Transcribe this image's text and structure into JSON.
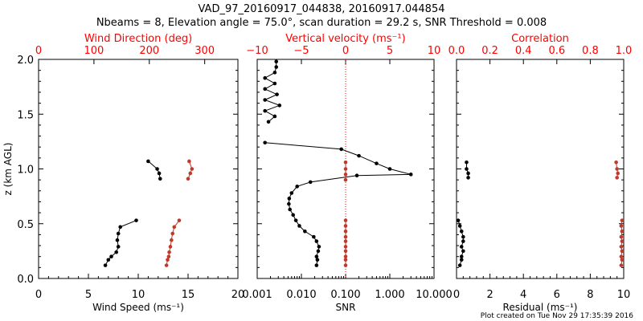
{
  "title_line1": "VAD_97_20160917_044838, 20160917.044854",
  "title_line2": "Nbeams = 8, Elevation angle = 75.0°, scan duration = 29.2 s, SNR Threshold = 0.008",
  "footer": "Plot created on Tue Nov 29 17:35:39 2016",
  "colors": {
    "primary": "#000000",
    "secondary": "#c0392b",
    "axis_red": "#ff0000"
  },
  "chart_data": [
    {
      "type": "line",
      "xlabel": "Wind Speed (ms⁻¹)",
      "ylabel": "z (km AGL)",
      "xlim": [
        0,
        20
      ],
      "xticks": [
        "0",
        "5",
        "10",
        "15",
        "20"
      ],
      "ylim": [
        0,
        2
      ],
      "yticks": [
        "0.0",
        "0.5",
        "1.0",
        "1.5",
        "2.0"
      ],
      "top_axis": {
        "label": "Wind Direction (deg)",
        "lim": [
          0,
          360
        ],
        "ticks": [
          "0",
          "100",
          "200",
          "300"
        ]
      },
      "series": [
        {
          "axis": "bottom",
          "color": "#000000",
          "segments": [
            [
              [
                6.7,
                0.12
              ],
              [
                7.0,
                0.17
              ],
              [
                7.3,
                0.2
              ],
              [
                7.8,
                0.24
              ],
              [
                8.0,
                0.29
              ],
              [
                7.9,
                0.35
              ],
              [
                8.0,
                0.41
              ],
              [
                8.2,
                0.47
              ],
              [
                9.8,
                0.53
              ]
            ],
            [
              [
                11.0,
                1.07
              ],
              [
                11.9,
                1.0
              ],
              [
                12.1,
                0.96
              ],
              [
                12.2,
                0.91
              ]
            ]
          ]
        },
        {
          "axis": "top",
          "color": "#c0392b",
          "segments": [
            [
              [
                231,
                0.12
              ],
              [
                233,
                0.17
              ],
              [
                235,
                0.2
              ],
              [
                236,
                0.24
              ],
              [
                238,
                0.29
              ],
              [
                240,
                0.35
              ],
              [
                242,
                0.41
              ],
              [
                245,
                0.47
              ],
              [
                254,
                0.53
              ]
            ],
            [
              [
                272,
                1.07
              ],
              [
                277,
                1.0
              ],
              [
                274,
                0.96
              ],
              [
                270,
                0.91
              ]
            ]
          ]
        }
      ]
    },
    {
      "type": "line",
      "xlabel": "SNR",
      "xscale": "log",
      "xlim": [
        0.001,
        10
      ],
      "xticks": [
        "0.001",
        "0.010",
        "0.100",
        "1.000",
        "10.000"
      ],
      "ylim": [
        0,
        2
      ],
      "top_axis": {
        "label": "Vertical velocity (ms⁻¹)",
        "lim": [
          -10,
          10
        ],
        "ticks": [
          "−10",
          "−5",
          "0",
          "5",
          "10"
        ],
        "ref_line_at": 0
      },
      "series": [
        {
          "axis": "bottom",
          "color": "#000000",
          "segments": [
            [
              [
                0.022,
                0.12
              ],
              [
                0.023,
                0.17
              ],
              [
                0.022,
                0.2
              ],
              [
                0.024,
                0.25
              ],
              [
                0.025,
                0.29
              ],
              [
                0.022,
                0.34
              ],
              [
                0.019,
                0.38
              ],
              [
                0.012,
                0.43
              ],
              [
                0.009,
                0.48
              ],
              [
                0.0075,
                0.53
              ],
              [
                0.0065,
                0.58
              ],
              [
                0.0055,
                0.63
              ],
              [
                0.0052,
                0.68
              ],
              [
                0.0053,
                0.73
              ],
              [
                0.006,
                0.78
              ],
              [
                0.008,
                0.84
              ],
              [
                0.016,
                0.88
              ],
              [
                0.18,
                0.94
              ],
              [
                3.0,
                0.95
              ],
              [
                1.0,
                1.0
              ],
              [
                0.5,
                1.05
              ],
              [
                0.2,
                1.12
              ],
              [
                0.08,
                1.18
              ],
              [
                0.0015,
                1.24
              ]
            ],
            [
              [
                0.0018,
                1.43
              ],
              [
                0.0025,
                1.48
              ],
              [
                0.0015,
                1.53
              ],
              [
                0.0032,
                1.58
              ],
              [
                0.0015,
                1.63
              ],
              [
                0.0028,
                1.68
              ],
              [
                0.0015,
                1.73
              ],
              [
                0.0025,
                1.78
              ],
              [
                0.0015,
                1.83
              ],
              [
                0.0025,
                1.88
              ],
              [
                0.0027,
                1.93
              ],
              [
                0.0027,
                1.98
              ]
            ]
          ]
        },
        {
          "axis": "top",
          "color": "#c0392b",
          "segments": [
            [
              [
                0,
                0.12
              ],
              [
                0,
                0.17
              ],
              [
                0,
                0.2
              ],
              [
                0,
                0.25
              ],
              [
                0,
                0.29
              ],
              [
                0,
                0.34
              ],
              [
                0,
                0.38
              ],
              [
                0,
                0.43
              ],
              [
                0,
                0.48
              ],
              [
                0,
                0.53
              ]
            ],
            [
              [
                0,
                0.9
              ],
              [
                0,
                0.95
              ],
              [
                0,
                1.0
              ],
              [
                0,
                1.06
              ]
            ]
          ]
        }
      ]
    },
    {
      "type": "line",
      "xlabel": "Residual (ms⁻¹)",
      "xlim": [
        0,
        10
      ],
      "xticks": [
        "0",
        "2",
        "4",
        "6",
        "8",
        "10"
      ],
      "ylim": [
        0,
        2
      ],
      "top_axis": {
        "label": "Correlation",
        "lim": [
          0,
          1
        ],
        "ticks": [
          "0.0",
          "0.2",
          "0.4",
          "0.6",
          "0.8",
          "1.0"
        ]
      },
      "series": [
        {
          "axis": "bottom",
          "color": "#000000",
          "segments": [
            [
              [
                0.2,
                0.12
              ],
              [
                0.3,
                0.17
              ],
              [
                0.3,
                0.2
              ],
              [
                0.4,
                0.25
              ],
              [
                0.3,
                0.29
              ],
              [
                0.4,
                0.34
              ],
              [
                0.4,
                0.38
              ],
              [
                0.3,
                0.43
              ],
              [
                0.2,
                0.48
              ],
              [
                0.1,
                0.53
              ]
            ],
            [
              [
                0.7,
                0.92
              ],
              [
                0.7,
                0.96
              ],
              [
                0.6,
                1.0
              ],
              [
                0.6,
                1.06
              ]
            ]
          ]
        },
        {
          "axis": "top",
          "color": "#c0392b",
          "segments": [
            [
              [
                0.985,
                0.12
              ],
              [
                0.99,
                0.17
              ],
              [
                0.985,
                0.2
              ],
              [
                0.99,
                0.25
              ],
              [
                0.985,
                0.29
              ],
              [
                0.99,
                0.34
              ],
              [
                0.985,
                0.38
              ],
              [
                0.99,
                0.43
              ],
              [
                0.985,
                0.48
              ],
              [
                0.99,
                0.53
              ]
            ],
            [
              [
                0.96,
                0.92
              ],
              [
                0.965,
                0.96
              ],
              [
                0.96,
                1.0
              ],
              [
                0.955,
                1.06
              ]
            ]
          ]
        }
      ]
    }
  ]
}
